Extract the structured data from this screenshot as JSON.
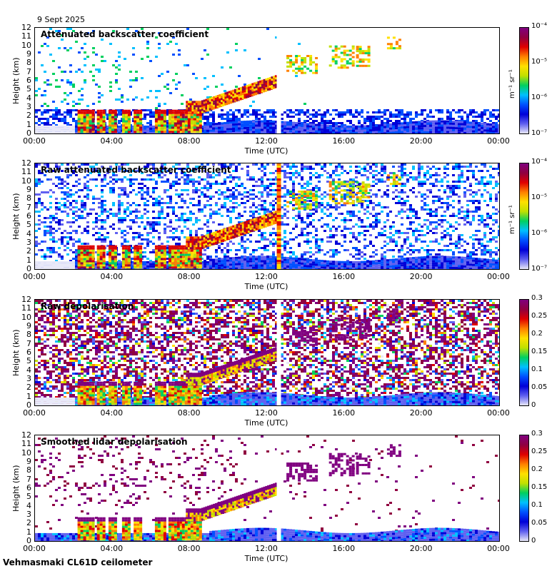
{
  "date": "9 Sept 2025",
  "footer": "Vehmasmaki CL61D ceilometer",
  "x_ticks": [
    "00:00",
    "04:00",
    "08:00",
    "12:00",
    "16:00",
    "20:00",
    "00:00"
  ],
  "x_label": "Time (UTC)",
  "y_ticks": [
    "0",
    "1",
    "2",
    "3",
    "4",
    "5",
    "6",
    "7",
    "8",
    "9",
    "10",
    "11",
    "12"
  ],
  "y_label": "Height (km)",
  "colors": {
    "colormap": [
      "#e8e8f8",
      "#6060f0",
      "#0000d8",
      "#0050ff",
      "#00c0ff",
      "#00d060",
      "#c0e000",
      "#ffe000",
      "#ff8000",
      "#e00000",
      "#900040",
      "#800080"
    ]
  },
  "chart_data": [
    {
      "type": "heatmap",
      "title": "Attenuated backscatter coefficient",
      "xlabel": "Time (UTC)",
      "ylabel": "Height (km)",
      "xlim": [
        "00:00",
        "24:00"
      ],
      "ylim": [
        0,
        12
      ],
      "colorbar": {
        "scale": "log",
        "range": [
          1e-07,
          0.0001
        ],
        "ticks": [
          "10⁻⁷",
          "10⁻⁶",
          "10⁻⁵",
          "10⁻⁴"
        ],
        "unit": "m⁻¹ sr⁻¹"
      }
    },
    {
      "type": "heatmap",
      "title": "Raw attenuated backscatter coefficient",
      "xlabel": "Time (UTC)",
      "ylabel": "Height (km)",
      "xlim": [
        "00:00",
        "24:00"
      ],
      "ylim": [
        0,
        12
      ],
      "colorbar": {
        "scale": "log",
        "range": [
          1e-07,
          0.0001
        ],
        "ticks": [
          "10⁻⁷",
          "10⁻⁶",
          "10⁻⁵",
          "10⁻⁴"
        ],
        "unit": "m⁻¹ sr⁻¹"
      }
    },
    {
      "type": "heatmap",
      "title": "Raw depolarisation",
      "xlabel": "Time (UTC)",
      "ylabel": "Height (km)",
      "xlim": [
        "00:00",
        "24:00"
      ],
      "ylim": [
        0,
        12
      ],
      "colorbar": {
        "scale": "linear",
        "range": [
          0,
          0.3
        ],
        "ticks": [
          "0",
          "0.05",
          "0.1",
          "0.15",
          "0.2",
          "0.25",
          "0.3"
        ]
      }
    },
    {
      "type": "heatmap",
      "title": "Smoothed lidar depolarisation",
      "xlabel": "Time (UTC)",
      "ylabel": "Height (km)",
      "xlim": [
        "00:00",
        "24:00"
      ],
      "ylim": [
        0,
        12
      ],
      "colorbar": {
        "scale": "linear",
        "range": [
          0,
          0.3
        ],
        "ticks": [
          "0",
          "0.05",
          "0.1",
          "0.15",
          "0.2",
          "0.25",
          "0.3"
        ]
      }
    }
  ]
}
